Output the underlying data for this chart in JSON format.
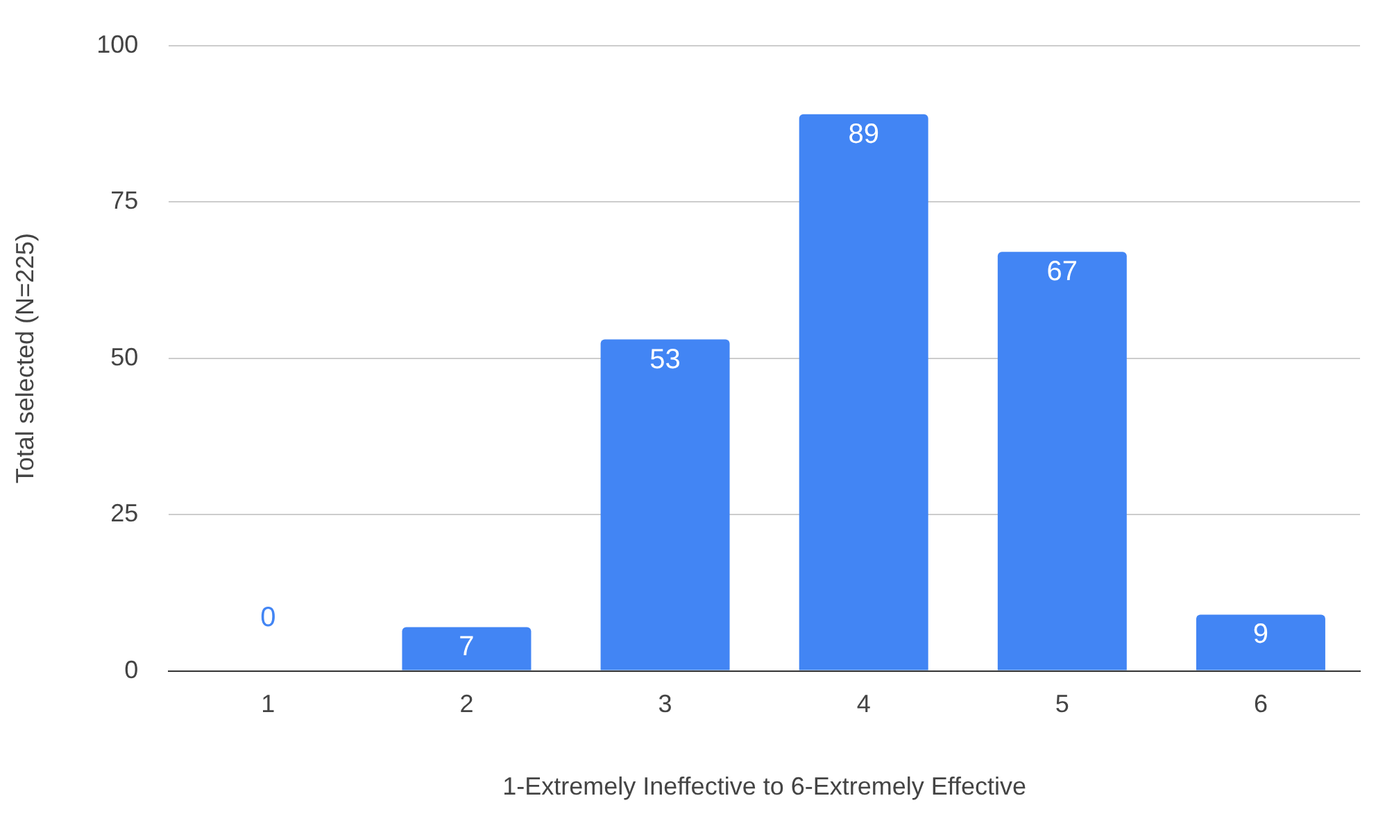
{
  "chart_data": {
    "type": "bar",
    "xlabel": "1-Extremely Ineffective to 6-Extremely Effective",
    "ylabel": "Total selected (N=225)",
    "categories": [
      "1",
      "2",
      "3",
      "4",
      "5",
      "6"
    ],
    "values": [
      0,
      7,
      53,
      89,
      67,
      9
    ],
    "color": "#4285f4",
    "ylim": [
      0,
      100
    ],
    "yticks": [
      0,
      25,
      50,
      75,
      100
    ],
    "grid": "y",
    "data_labels": true
  }
}
